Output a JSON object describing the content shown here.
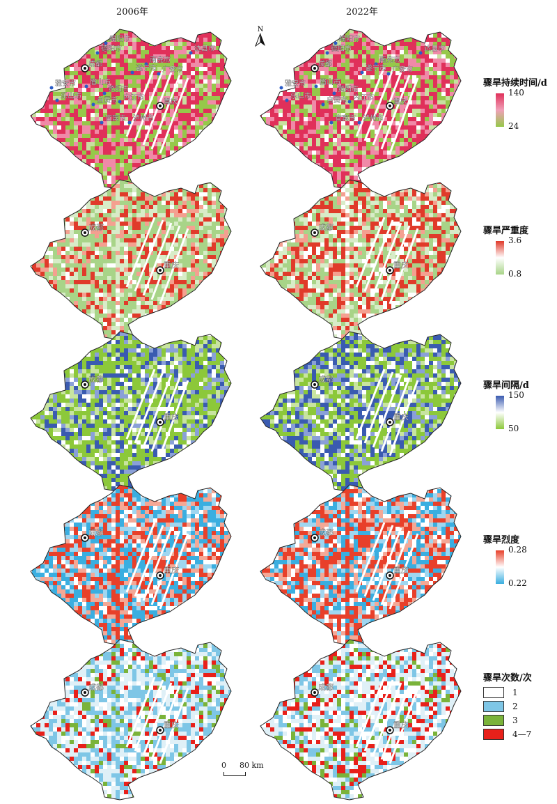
{
  "column_titles": {
    "left": "2006年",
    "right": "2022年"
  },
  "north_arrow": "N",
  "scale_bar": {
    "zero": "0",
    "distance": "80 km"
  },
  "cities_all": [
    "绵阳市",
    "德阳市",
    "达县市",
    "成都",
    "南充市",
    "遂宁市",
    "广安市",
    "雅安市",
    "眉山市",
    "资阳市",
    "乐山市",
    "内江市",
    "自贡市",
    "重庆",
    "宜宾市",
    "泸州市"
  ],
  "cities_short": [
    "成都",
    "重庆"
  ],
  "legends": [
    {
      "title": "骤旱持续时间/d",
      "max": "140",
      "min": "24",
      "colors": [
        "#e0305a",
        "#f0a0b8",
        "#96c84a"
      ]
    },
    {
      "title": "骤旱严重度",
      "max": "3.6",
      "min": "0.8",
      "colors": [
        "#e03a2a",
        "#ffffff",
        "#a8d488"
      ]
    },
    {
      "title": "骤旱间隔/d",
      "max": "150",
      "min": "50",
      "colors": [
        "#3a5bb0",
        "#ffffff",
        "#8cc83a"
      ]
    },
    {
      "title": "骤旱烈度",
      "max": "0.28",
      "min": "0.22",
      "colors": [
        "#e8402a",
        "#ffffff",
        "#3aaee0"
      ]
    },
    {
      "title": "骤旱次数/次",
      "categories": [
        {
          "label": "1",
          "color": "#ffffff"
        },
        {
          "label": "2",
          "color": "#7ec6e6"
        },
        {
          "label": "3",
          "color": "#7ab33a"
        },
        {
          "label": "4—7",
          "color": "#e8201a"
        }
      ]
    }
  ],
  "icons": {
    "city_marker": "target-dot-icon",
    "north": "north-arrow-icon"
  }
}
